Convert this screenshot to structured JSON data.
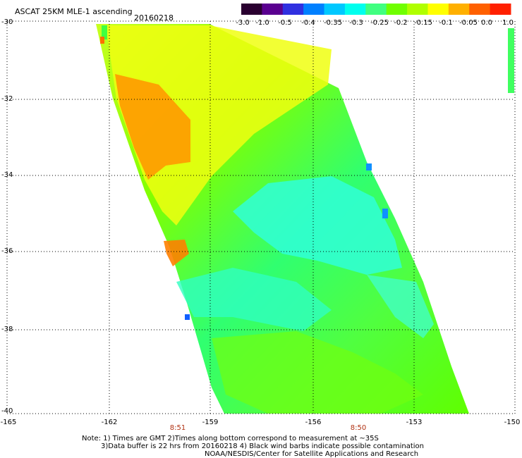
{
  "header": {
    "title": "ASCAT 25KM MLE-1 ascending",
    "date": "20160218"
  },
  "colorbar": {
    "labels": [
      "-3.0",
      "-1.0",
      "-0.5",
      "-0.4",
      "-0.35",
      "-0.3",
      "-0.25",
      "-0.2",
      "-0.15",
      "-0.1",
      "-0.05",
      "0.0",
      "1.0"
    ],
    "colors": [
      "#2a0030",
      "#5a0090",
      "#3030e0",
      "#0080ff",
      "#00c8ff",
      "#00ffee",
      "#40ff80",
      "#70ff00",
      "#b0ff00",
      "#ffff00",
      "#ffb000",
      "#ff6000",
      "#ff2000"
    ]
  },
  "axes": {
    "y_labels": [
      "-30",
      "-32",
      "-34",
      "-36",
      "-38",
      "-40"
    ],
    "x_labels": [
      "-165",
      "-162",
      "-159",
      "-156",
      "-153",
      "-150"
    ],
    "times": [
      "8:51",
      "8:50"
    ]
  },
  "notes": {
    "line1": "Note: 1) Times are GMT 2)Times along bottom correspond to measurement at ~35S",
    "line2": "3)Data buffer is 22 hrs from 20160218 4) Black wind barbs indicate possible contamination",
    "line3": "NOAA/NESDIS/Center for Satellite Applications and Research"
  }
}
